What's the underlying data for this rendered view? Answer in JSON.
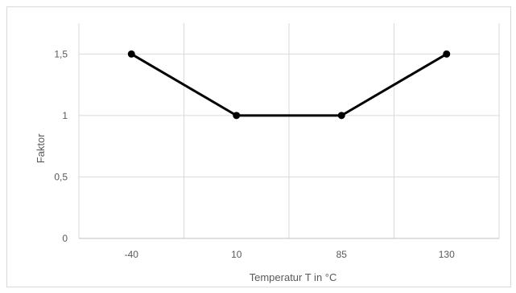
{
  "chart_data": {
    "type": "line",
    "categories": [
      "-40",
      "10",
      "85",
      "130"
    ],
    "series": [
      {
        "values": [
          1.5,
          1,
          1,
          1.5
        ],
        "color": "#000000"
      }
    ],
    "ylabel": "Faktor",
    "xlabel": "Temperatur  T in °C",
    "ylim": [
      0,
      1.75
    ],
    "yticks": [
      0,
      0.5,
      1,
      1.5
    ],
    "ytick_labels": [
      "0",
      "0,5",
      "1",
      "1,5"
    ],
    "grid": true,
    "gridline_color": "#d9d9d9"
  }
}
